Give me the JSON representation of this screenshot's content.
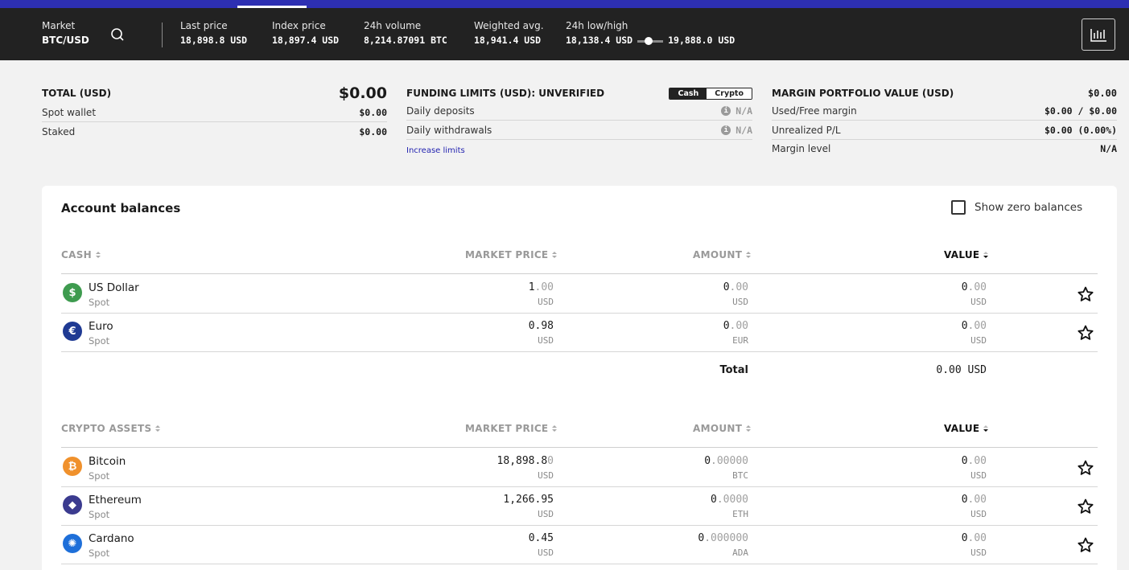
{
  "header": {
    "market_label": "Market",
    "market_value": "BTC/USD",
    "stats": [
      {
        "label": "Last price",
        "value": "18,898.8 USD"
      },
      {
        "label": "Index price",
        "value": "18,897.4 USD"
      },
      {
        "label": "24h volume",
        "value": "8,214.87091 BTC"
      },
      {
        "label": "Weighted avg.",
        "value": "18,941.4 USD"
      }
    ],
    "lowhigh_label": "24h low/high",
    "low": "18,138.4 USD",
    "high": "19,888.0 USD",
    "range_position": 0.43,
    "search_icon": "search-icon",
    "chart_icon": "bar-chart-icon",
    "accent_color": "#2d2fb2"
  },
  "total": {
    "title": "TOTAL (USD)",
    "value": "$0.00",
    "rows": [
      {
        "label": "Spot wallet",
        "value": "$0.00"
      },
      {
        "label": "Staked",
        "value": "$0.00"
      }
    ]
  },
  "funding": {
    "title": "FUNDING LIMITS (USD): UNVERIFIED",
    "toggle_cash": "Cash",
    "toggle_crypto": "Crypto",
    "rows": [
      {
        "label": "Daily deposits",
        "value": "N/A"
      },
      {
        "label": "Daily withdrawals",
        "value": "N/A"
      }
    ],
    "info_icon": "info-icon",
    "link": "Increase limits"
  },
  "margin": {
    "title": "MARGIN PORTFOLIO VALUE (USD)",
    "value": "$0.00",
    "rows": [
      {
        "label": "Used/Free margin",
        "value": "$0.00 / $0.00"
      },
      {
        "label": "Unrealized P/L",
        "value": "$0.00 (0.00%)"
      },
      {
        "label": "Margin level",
        "value": "N/A"
      }
    ]
  },
  "balances": {
    "title": "Account balances",
    "show_zero_label": "Show zero balances",
    "show_zero_checked": false,
    "cash_table": {
      "headers": {
        "name": "CASH",
        "price": "MARKET PRICE",
        "amount": "AMOUNT",
        "value": "VALUE"
      },
      "rows": [
        {
          "name": "US Dollar",
          "sub": "Spot",
          "icon": "dollar-icon",
          "icon_color": "#3e9b4f",
          "glyph": "$",
          "price_main": "1",
          "price_dim": ".00",
          "price_unit": "USD",
          "amount_main": "0",
          "amount_dim": ".00",
          "amount_unit": "USD",
          "value_main": "0",
          "value_dim": ".00",
          "value_unit": "USD"
        },
        {
          "name": "Euro",
          "sub": "Spot",
          "icon": "euro-icon",
          "icon_color": "#1f3a93",
          "glyph": "€",
          "price_main": "0.98",
          "price_dim": "",
          "price_unit": "USD",
          "amount_main": "0",
          "amount_dim": ".00",
          "amount_unit": "EUR",
          "value_main": "0",
          "value_dim": ".00",
          "value_unit": "USD"
        }
      ],
      "total_label": "Total",
      "total_value": "0.00 USD"
    },
    "crypto_table": {
      "headers": {
        "name": "CRYPTO ASSETS",
        "price": "MARKET PRICE",
        "amount": "AMOUNT",
        "value": "VALUE"
      },
      "rows": [
        {
          "name": "Bitcoin",
          "sub": "Spot",
          "icon": "bitcoin-icon",
          "icon_color": "#f0912c",
          "glyph": "₿",
          "price_main": "18,898.8",
          "price_dim": "0",
          "price_unit": "USD",
          "amount_main": "0",
          "amount_dim": ".00000",
          "amount_unit": "BTC",
          "value_main": "0",
          "value_dim": ".00",
          "value_unit": "USD"
        },
        {
          "name": "Ethereum",
          "sub": "Spot",
          "icon": "ethereum-icon",
          "icon_color": "#3b3b8f",
          "glyph": "◆",
          "price_main": "1,266.95",
          "price_dim": "",
          "price_unit": "USD",
          "amount_main": "0",
          "amount_dim": ".0000",
          "amount_unit": "ETH",
          "value_main": "0",
          "value_dim": ".00",
          "value_unit": "USD"
        },
        {
          "name": "Cardano",
          "sub": "Spot",
          "icon": "cardano-icon",
          "icon_color": "#1e6fd9",
          "glyph": "✺",
          "price_main": "0.45",
          "price_dim": "",
          "price_unit": "USD",
          "amount_main": "0",
          "amount_dim": ".000000",
          "amount_unit": "ADA",
          "value_main": "0",
          "value_dim": ".00",
          "value_unit": "USD"
        }
      ]
    },
    "star_icon": "star-icon"
  }
}
